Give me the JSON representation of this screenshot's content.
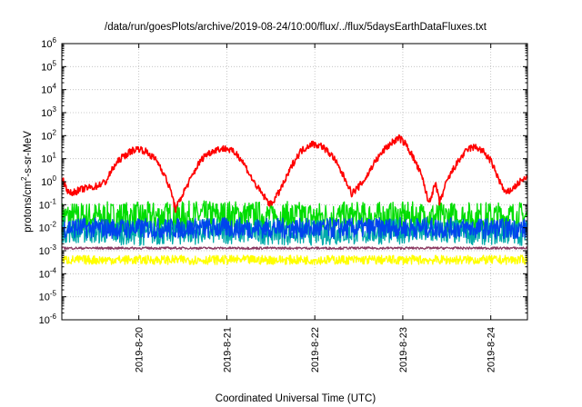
{
  "chart_data": {
    "type": "line",
    "title": "/data/run/goesPlots/archive/2019-08-24/10:00/flux/../flux/5daysEarthDataFluxes.txt",
    "xlabel": "Coordinated Universal Time (UTC)",
    "ylabel": {
      "pre": "protons/cm",
      "sup": "2",
      "post": "-s-sr-MeV"
    },
    "scale": {
      "y": "log",
      "x": "time"
    },
    "ylim": [
      1e-06,
      1000000.0
    ],
    "xlim": [
      "2019-08-19 03:00",
      "2019-08-24 10:00"
    ],
    "grid": true,
    "y_ticks": [
      {
        "v": 1e-06,
        "base": "10",
        "exp": "-6"
      },
      {
        "v": 1e-05,
        "base": "10",
        "exp": "-5"
      },
      {
        "v": 0.0001,
        "base": "10",
        "exp": "-4"
      },
      {
        "v": 0.001,
        "base": "10",
        "exp": "-3"
      },
      {
        "v": 0.01,
        "base": "10",
        "exp": "-2"
      },
      {
        "v": 0.1,
        "base": "10",
        "exp": "-1"
      },
      {
        "v": 1.0,
        "base": "10",
        "exp": "0"
      },
      {
        "v": 10.0,
        "base": "10",
        "exp": "1"
      },
      {
        "v": 100.0,
        "base": "10",
        "exp": "2"
      },
      {
        "v": 1000.0,
        "base": "10",
        "exp": "3"
      },
      {
        "v": 10000.0,
        "base": "10",
        "exp": "4"
      },
      {
        "v": 100000.0,
        "base": "10",
        "exp": "5"
      },
      {
        "v": 1000000.0,
        "base": "10",
        "exp": "6"
      }
    ],
    "x_ticks": [
      {
        "t": "2019-08-20",
        "label": "2019-8-20"
      },
      {
        "t": "2019-08-21",
        "label": "2019-8-21"
      },
      {
        "t": "2019-08-22",
        "label": "2019-8-22"
      },
      {
        "t": "2019-08-23",
        "label": "2019-8-23"
      },
      {
        "t": "2019-08-24",
        "label": "2019-8-24"
      }
    ],
    "series": [
      {
        "color": "#00dd00",
        "style": "noisy",
        "points": [
          [
            "2019-08-19 03:00",
            0.03
          ],
          [
            "2019-08-20 00:00",
            0.03
          ],
          [
            "2019-08-21 00:00",
            0.035
          ],
          [
            "2019-08-22 00:00",
            0.03
          ],
          [
            "2019-08-23 00:00",
            0.03
          ],
          [
            "2019-08-24 10:00",
            0.03
          ]
        ],
        "spread": 0.65
      },
      {
        "color": "#00aaaa",
        "style": "noisy",
        "points": [
          [
            "2019-08-19 03:00",
            0.008
          ],
          [
            "2019-08-20 00:00",
            0.006
          ],
          [
            "2019-08-21 00:00",
            0.007
          ],
          [
            "2019-08-22 00:00",
            0.006
          ],
          [
            "2019-08-23 00:00",
            0.007
          ],
          [
            "2019-08-24 10:00",
            0.006
          ]
        ],
        "spread": 0.55
      },
      {
        "color": "#0044ee",
        "style": "noisy",
        "points": [
          [
            "2019-08-19 03:00",
            0.01
          ],
          [
            "2019-08-20 00:00",
            0.009
          ],
          [
            "2019-08-21 00:00",
            0.01
          ],
          [
            "2019-08-22 00:00",
            0.009
          ],
          [
            "2019-08-23 00:00",
            0.01
          ],
          [
            "2019-08-24 10:00",
            0.009
          ]
        ],
        "spread": 0.45
      },
      {
        "color": "#8b3a62",
        "style": "noisy",
        "points": [
          [
            "2019-08-19 03:00",
            0.0013
          ],
          [
            "2019-08-24 10:00",
            0.0013
          ]
        ],
        "spread": 0.05
      },
      {
        "color": "#ffff00",
        "style": "noisy",
        "points": [
          [
            "2019-08-19 03:00",
            0.0004
          ],
          [
            "2019-08-24 10:00",
            0.0004
          ]
        ],
        "spread": 0.2
      },
      {
        "color": "#ff0000",
        "style": "noisy",
        "points": [
          [
            "2019-08-19 03:00",
            1.5
          ],
          [
            "2019-08-19 05:00",
            0.3
          ],
          [
            "2019-08-19 09:00",
            0.5
          ],
          [
            "2019-08-19 12:00",
            0.6
          ],
          [
            "2019-08-19 15:00",
            1.0
          ],
          [
            "2019-08-19 17:00",
            4
          ],
          [
            "2019-08-19 19:00",
            10
          ],
          [
            "2019-08-19 22:00",
            22
          ],
          [
            "2019-08-20 00:00",
            28
          ],
          [
            "2019-08-20 02:00",
            20
          ],
          [
            "2019-08-20 05:00",
            8
          ],
          [
            "2019-08-20 07:00",
            2
          ],
          [
            "2019-08-20 09:00",
            0.3
          ],
          [
            "2019-08-20 10:00",
            0.06
          ],
          [
            "2019-08-20 12:00",
            0.3
          ],
          [
            "2019-08-20 14:00",
            1.2
          ],
          [
            "2019-08-20 16:00",
            5
          ],
          [
            "2019-08-20 18:00",
            14
          ],
          [
            "2019-08-20 21:00",
            25
          ],
          [
            "2019-08-21 00:00",
            28
          ],
          [
            "2019-08-21 03:00",
            15
          ],
          [
            "2019-08-21 05:00",
            5
          ],
          [
            "2019-08-21 07:00",
            1.2
          ],
          [
            "2019-08-21 09:00",
            0.4
          ],
          [
            "2019-08-21 11:00",
            0.15
          ],
          [
            "2019-08-21 12:00",
            0.1
          ],
          [
            "2019-08-21 14:00",
            0.3
          ],
          [
            "2019-08-21 16:00",
            1.2
          ],
          [
            "2019-08-21 18:00",
            6
          ],
          [
            "2019-08-21 20:00",
            20
          ],
          [
            "2019-08-21 23:00",
            45
          ],
          [
            "2019-08-22 02:00",
            35
          ],
          [
            "2019-08-22 05:00",
            12
          ],
          [
            "2019-08-22 07:00",
            3
          ],
          [
            "2019-08-22 09:00",
            0.8
          ],
          [
            "2019-08-22 10:00",
            0.3
          ],
          [
            "2019-08-22 12:00",
            0.6
          ],
          [
            "2019-08-22 14:00",
            1.5
          ],
          [
            "2019-08-22 16:00",
            6
          ],
          [
            "2019-08-22 19:00",
            25
          ],
          [
            "2019-08-22 21:00",
            50
          ],
          [
            "2019-08-22 23:00",
            80
          ],
          [
            "2019-08-23 01:00",
            40
          ],
          [
            "2019-08-23 03:00",
            10
          ],
          [
            "2019-08-23 05:00",
            2
          ],
          [
            "2019-08-23 06:00",
            0.6
          ],
          [
            "2019-08-23 07:00",
            0.12
          ],
          [
            "2019-08-23 09:00",
            0.8
          ],
          [
            "2019-08-23 10:00",
            0.12
          ],
          [
            "2019-08-23 12:00",
            1.0
          ],
          [
            "2019-08-23 14:00",
            4
          ],
          [
            "2019-08-23 16:00",
            12
          ],
          [
            "2019-08-23 18:00",
            28
          ],
          [
            "2019-08-23 20:00",
            32
          ],
          [
            "2019-08-23 22:00",
            20
          ],
          [
            "2019-08-24 00:00",
            8
          ],
          [
            "2019-08-24 02:00",
            1.5
          ],
          [
            "2019-08-24 04:00",
            0.3
          ],
          [
            "2019-08-24 06:00",
            0.5
          ],
          [
            "2019-08-24 08:00",
            1.0
          ],
          [
            "2019-08-24 10:00",
            1.5
          ]
        ],
        "spread": 0.15
      }
    ]
  }
}
